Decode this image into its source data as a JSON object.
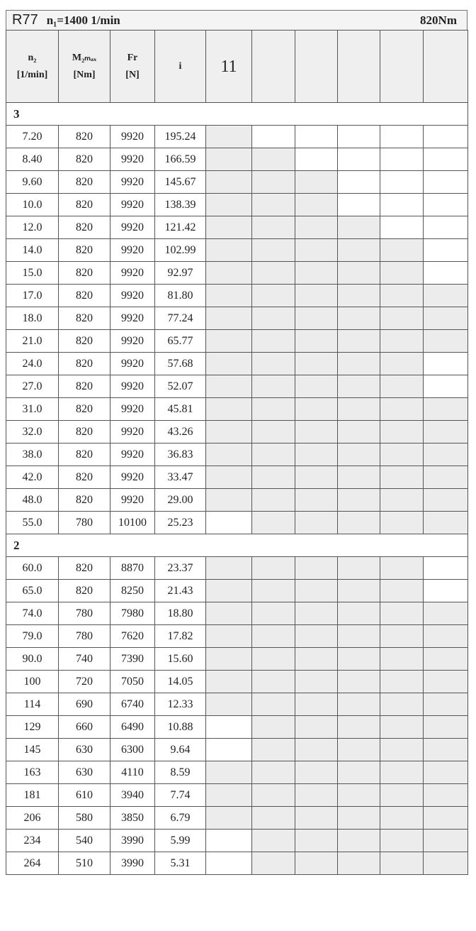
{
  "title": {
    "model": "R77",
    "n1": "n₁=1400 1/min",
    "torque": "820Nm"
  },
  "columns": [
    {
      "line1": "n₂",
      "line2": "[1/min]"
    },
    {
      "line1": "M₂ₘₐₓ",
      "line2": "[Nm]"
    },
    {
      "line1": "Fr",
      "line2": "[N]"
    },
    {
      "line1": "i",
      "line2": ""
    },
    {
      "line1": "11",
      "line2": ""
    }
  ],
  "shade_colors": {
    "shaded": "#ececec",
    "blank": "#ffffff"
  },
  "stages": [
    {
      "label": "3",
      "rows": [
        {
          "n2": "7.20",
          "m2": "820",
          "fr": "9920",
          "i": "195.24",
          "shaded": [
            1,
            0,
            0,
            0,
            0,
            0
          ]
        },
        {
          "n2": "8.40",
          "m2": "820",
          "fr": "9920",
          "i": "166.59",
          "shaded": [
            1,
            1,
            0,
            0,
            0,
            0
          ]
        },
        {
          "n2": "9.60",
          "m2": "820",
          "fr": "9920",
          "i": "145.67",
          "shaded": [
            1,
            1,
            1,
            0,
            0,
            0
          ]
        },
        {
          "n2": "10.0",
          "m2": "820",
          "fr": "9920",
          "i": "138.39",
          "shaded": [
            1,
            1,
            1,
            0,
            0,
            0
          ]
        },
        {
          "n2": "12.0",
          "m2": "820",
          "fr": "9920",
          "i": "121.42",
          "shaded": [
            1,
            1,
            1,
            1,
            0,
            0
          ]
        },
        {
          "n2": "14.0",
          "m2": "820",
          "fr": "9920",
          "i": "102.99",
          "shaded": [
            1,
            1,
            1,
            1,
            1,
            0
          ]
        },
        {
          "n2": "15.0",
          "m2": "820",
          "fr": "9920",
          "i": "92.97",
          "shaded": [
            1,
            1,
            1,
            1,
            1,
            0
          ]
        },
        {
          "n2": "17.0",
          "m2": "820",
          "fr": "9920",
          "i": "81.80",
          "shaded": [
            1,
            1,
            1,
            1,
            1,
            1
          ]
        },
        {
          "n2": "18.0",
          "m2": "820",
          "fr": "9920",
          "i": "77.24",
          "shaded": [
            1,
            1,
            1,
            1,
            1,
            1
          ]
        },
        {
          "n2": "21.0",
          "m2": "820",
          "fr": "9920",
          "i": "65.77",
          "shaded": [
            1,
            1,
            1,
            1,
            1,
            1
          ]
        },
        {
          "n2": "24.0",
          "m2": "820",
          "fr": "9920",
          "i": "57.68",
          "shaded": [
            1,
            1,
            1,
            1,
            1,
            0
          ]
        },
        {
          "n2": "27.0",
          "m2": "820",
          "fr": "9920",
          "i": "52.07",
          "shaded": [
            1,
            1,
            1,
            1,
            1,
            0
          ]
        },
        {
          "n2": "31.0",
          "m2": "820",
          "fr": "9920",
          "i": "45.81",
          "shaded": [
            1,
            1,
            1,
            1,
            1,
            1
          ]
        },
        {
          "n2": "32.0",
          "m2": "820",
          "fr": "9920",
          "i": "43.26",
          "shaded": [
            1,
            1,
            1,
            1,
            1,
            1
          ]
        },
        {
          "n2": "38.0",
          "m2": "820",
          "fr": "9920",
          "i": "36.83",
          "shaded": [
            1,
            1,
            1,
            1,
            1,
            1
          ]
        },
        {
          "n2": "42.0",
          "m2": "820",
          "fr": "9920",
          "i": "33.47",
          "shaded": [
            1,
            1,
            1,
            1,
            1,
            1
          ]
        },
        {
          "n2": "48.0",
          "m2": "820",
          "fr": "9920",
          "i": "29.00",
          "shaded": [
            1,
            1,
            1,
            1,
            1,
            1
          ]
        },
        {
          "n2": "55.0",
          "m2": "780",
          "fr": "10100",
          "i": "25.23",
          "shaded": [
            0,
            1,
            1,
            1,
            1,
            1
          ]
        }
      ]
    },
    {
      "label": "2",
      "rows": [
        {
          "n2": "60.0",
          "m2": "820",
          "fr": "8870",
          "i": "23.37",
          "shaded": [
            1,
            1,
            1,
            1,
            1,
            0
          ]
        },
        {
          "n2": "65.0",
          "m2": "820",
          "fr": "8250",
          "i": "21.43",
          "shaded": [
            1,
            1,
            1,
            1,
            1,
            0
          ]
        },
        {
          "n2": "74.0",
          "m2": "780",
          "fr": "7980",
          "i": "18.80",
          "shaded": [
            1,
            1,
            1,
            1,
            1,
            1
          ]
        },
        {
          "n2": "79.0",
          "m2": "780",
          "fr": "7620",
          "i": "17.82",
          "shaded": [
            1,
            1,
            1,
            1,
            1,
            1
          ]
        },
        {
          "n2": "90.0",
          "m2": "740",
          "fr": "7390",
          "i": "15.60",
          "shaded": [
            1,
            1,
            1,
            1,
            1,
            1
          ]
        },
        {
          "n2": "100",
          "m2": "720",
          "fr": "7050",
          "i": "14.05",
          "shaded": [
            1,
            1,
            1,
            1,
            1,
            1
          ]
        },
        {
          "n2": "114",
          "m2": "690",
          "fr": "6740",
          "i": "12.33",
          "shaded": [
            1,
            1,
            1,
            1,
            1,
            1
          ]
        },
        {
          "n2": "129",
          "m2": "660",
          "fr": "6490",
          "i": "10.88",
          "shaded": [
            0,
            1,
            1,
            1,
            1,
            1
          ]
        },
        {
          "n2": "145",
          "m2": "630",
          "fr": "6300",
          "i": "9.64",
          "shaded": [
            0,
            1,
            1,
            1,
            1,
            1
          ]
        },
        {
          "n2": "163",
          "m2": "630",
          "fr": "4110",
          "i": "8.59",
          "shaded": [
            1,
            1,
            1,
            1,
            1,
            1
          ]
        },
        {
          "n2": "181",
          "m2": "610",
          "fr": "3940",
          "i": "7.74",
          "shaded": [
            1,
            1,
            1,
            1,
            1,
            1
          ]
        },
        {
          "n2": "206",
          "m2": "580",
          "fr": "3850",
          "i": "6.79",
          "shaded": [
            1,
            1,
            1,
            1,
            1,
            1
          ]
        },
        {
          "n2": "234",
          "m2": "540",
          "fr": "3990",
          "i": "5.99",
          "shaded": [
            0,
            1,
            1,
            1,
            1,
            1
          ]
        },
        {
          "n2": "264",
          "m2": "510",
          "fr": "3990",
          "i": "5.31",
          "shaded": [
            0,
            1,
            1,
            1,
            1,
            1
          ]
        }
      ]
    }
  ]
}
